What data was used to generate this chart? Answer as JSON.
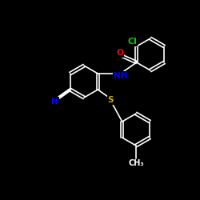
{
  "background": "#000000",
  "bond_color": "#ffffff",
  "atom_colors": {
    "Cl": "#00cc00",
    "O": "#ff0000",
    "N": "#0000ff",
    "S": "#ccaa00",
    "C": "#ffffff"
  },
  "font_size": 7.5,
  "bond_width": 1.2
}
